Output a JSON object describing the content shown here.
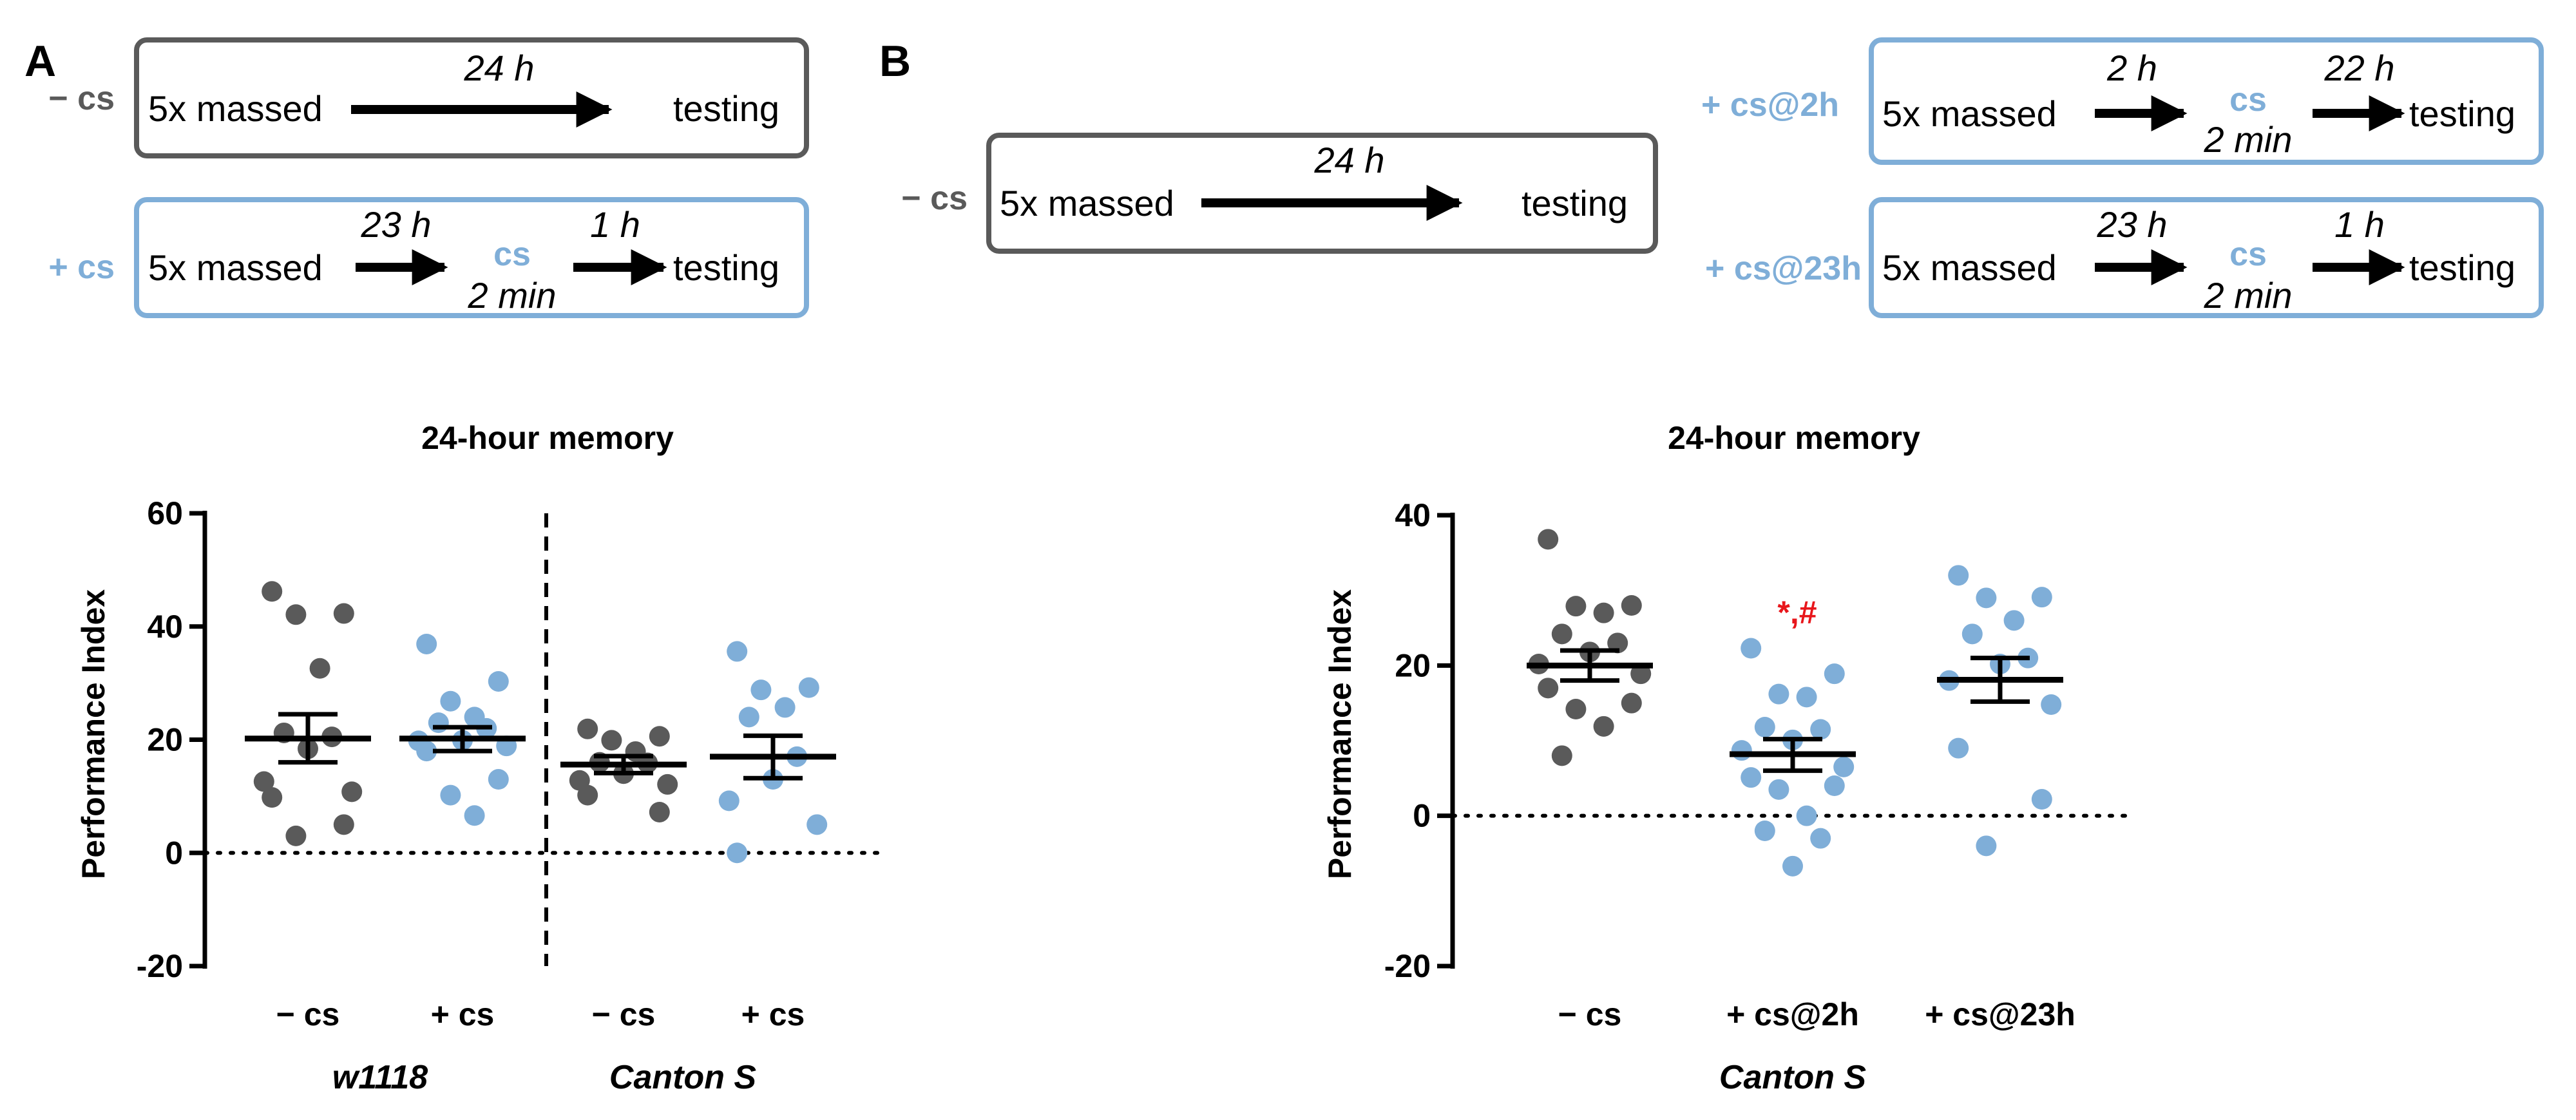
{
  "colors": {
    "gray": "#5a5a5a",
    "blue": "#7faed8",
    "black": "#000000",
    "red": "#e8161b"
  },
  "panel_a": {
    "letter": "A",
    "protocols": [
      {
        "label": "− cs",
        "color": "gray",
        "train": "5x massed",
        "end": "testing",
        "steps": [
          {
            "time": "24 h"
          }
        ]
      },
      {
        "label": "+ cs",
        "color": "blue",
        "train": "5x massed",
        "end": "testing",
        "steps": [
          {
            "time": "23 h"
          },
          {
            "time": "1 h"
          }
        ],
        "cs_label": "cs",
        "cs_duration": "2 min"
      }
    ]
  },
  "panel_b": {
    "letter": "B",
    "protocols": [
      {
        "label": "− cs",
        "color": "gray",
        "train": "5x massed",
        "end": "testing",
        "steps": [
          {
            "time": "24 h"
          }
        ]
      },
      {
        "label": "+ cs@2h",
        "color": "blue",
        "train": "5x massed",
        "end": "testing",
        "steps": [
          {
            "time": "2 h"
          },
          {
            "time": "22 h"
          }
        ],
        "cs_label": "cs",
        "cs_duration": "2 min"
      },
      {
        "label": "+ cs@23h",
        "color": "blue",
        "train": "5x massed",
        "end": "testing",
        "steps": [
          {
            "time": "23 h"
          },
          {
            "time": "1 h"
          }
        ],
        "cs_label": "cs",
        "cs_duration": "2 min"
      }
    ]
  },
  "chart_data": [
    {
      "type": "scatter",
      "panel": "A",
      "title": "24-hour memory",
      "ylabel": "Performance Index",
      "xlabel": "",
      "ylim": [
        -20,
        60
      ],
      "yticks": [
        -20,
        0,
        20,
        40,
        60
      ],
      "reference_line": {
        "y": 0,
        "style": "dotted"
      },
      "divider_after_group": 1,
      "categories": [
        "− cs",
        "+ cs",
        "− cs",
        "+ cs"
      ],
      "group_labels": [
        {
          "text": "w1118",
          "span": [
            0,
            1
          ]
        },
        {
          "text": "Canton S",
          "span": [
            2,
            3
          ]
        }
      ],
      "series": [
        {
          "name": "− cs",
          "group": "w1118",
          "color": "gray",
          "mean": 20.2,
          "sem_low": 16.0,
          "sem_high": 24.5,
          "values": [
            46.2,
            42.1,
            42.3,
            32.6,
            21.2,
            20.5,
            18.4,
            12.6,
            10.8,
            9.8,
            5.0,
            3.0
          ]
        },
        {
          "name": "+ cs",
          "group": "w1118",
          "color": "blue",
          "mean": 20.2,
          "sem_low": 18.0,
          "sem_high": 22.2,
          "values": [
            36.9,
            30.3,
            26.8,
            24.0,
            23.0,
            22.0,
            19.9,
            19.8,
            18.9,
            18.0,
            13.0,
            10.2,
            6.6
          ]
        },
        {
          "name": "− cs",
          "group": "Canton S",
          "color": "gray",
          "mean": 15.6,
          "sem_low": 14.1,
          "sem_high": 17.1,
          "values": [
            21.9,
            20.6,
            19.9,
            17.9,
            16.0,
            15.9,
            14.0,
            12.8,
            12.1,
            10.2,
            7.2
          ]
        },
        {
          "name": "+ cs",
          "group": "Canton S",
          "color": "blue",
          "mean": 17.0,
          "sem_low": 13.2,
          "sem_high": 20.7,
          "values": [
            35.6,
            29.2,
            28.8,
            25.7,
            24.0,
            17.0,
            13.0,
            9.2,
            5.0,
            0.0
          ]
        }
      ]
    },
    {
      "type": "scatter",
      "panel": "B",
      "title": "24-hour memory",
      "ylabel": "Performance Index",
      "xlabel": "",
      "ylim": [
        -20,
        40
      ],
      "yticks": [
        -20,
        0,
        20,
        40
      ],
      "reference_line": {
        "y": 0,
        "style": "dotted"
      },
      "categories": [
        "− cs",
        "+ cs@2h",
        "+ cs@23h"
      ],
      "group_labels": [
        {
          "text": "Canton S",
          "span": [
            0,
            2
          ]
        }
      ],
      "annotations": [
        {
          "text": "*,#",
          "series": 1,
          "color": "red"
        }
      ],
      "series": [
        {
          "name": "− cs",
          "color": "gray",
          "mean": 20.0,
          "sem_low": 18.0,
          "sem_high": 22.0,
          "values": [
            36.8,
            28.0,
            27.9,
            27.0,
            24.2,
            23.0,
            21.8,
            20.2,
            18.9,
            17.0,
            15.0,
            14.2,
            11.9,
            8.0
          ]
        },
        {
          "name": "+ cs@2h",
          "color": "blue",
          "mean": 8.2,
          "sem_low": 6.0,
          "sem_high": 10.2,
          "values": [
            22.3,
            18.9,
            16.2,
            15.8,
            11.8,
            11.5,
            10.1,
            8.7,
            6.5,
            5.1,
            4.0,
            3.5,
            0.0,
            -2.0,
            -3.0,
            -6.7
          ]
        },
        {
          "name": "+ cs@23h",
          "color": "blue",
          "mean": 18.1,
          "sem_low": 15.2,
          "sem_high": 21.0,
          "values": [
            32.0,
            29.1,
            29.0,
            26.0,
            24.2,
            21.0,
            20.2,
            18.0,
            14.8,
            9.0,
            2.2,
            -4.0
          ]
        }
      ]
    }
  ]
}
